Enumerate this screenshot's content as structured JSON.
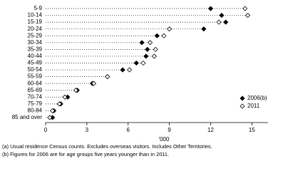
{
  "chart_data": {
    "type": "dot",
    "categories": [
      "5-9",
      "10-14",
      "15-19",
      "20-24",
      "25-29",
      "30-34",
      "35-39",
      "40-44",
      "45-49",
      "50-54",
      "55-59",
      "60-64",
      "65-69",
      "70-74",
      "75-79",
      "80-84",
      "85 and over"
    ],
    "series": [
      {
        "name": "2006(b)",
        "color": "#000000",
        "marker": "filled-diamond",
        "values": [
          12.0,
          12.8,
          13.1,
          11.5,
          8.1,
          7.0,
          7.4,
          7.3,
          6.6,
          5.6,
          4.5,
          3.4,
          2.3,
          1.6,
          1.1,
          0.6,
          0.5
        ]
      },
      {
        "name": "2011",
        "color": "#000000",
        "marker": "open-diamond",
        "values": [
          14.5,
          14.7,
          12.6,
          9.0,
          8.6,
          7.6,
          8.0,
          7.9,
          7.1,
          6.1,
          4.5,
          3.5,
          2.2,
          1.4,
          1.0,
          0.5,
          0.3
        ]
      }
    ],
    "xlim": [
      0,
      15.5
    ],
    "xticks": [
      0,
      3,
      6,
      9,
      12,
      15
    ],
    "x_label": "'000",
    "legend": "bottom-right",
    "notes": [
      "(a) Usual residence Census counts. Excludes overseas visitors. Includes Other Territories.",
      "(b) Figures for 2006 are for age groups five years younger than in 2011."
    ]
  }
}
